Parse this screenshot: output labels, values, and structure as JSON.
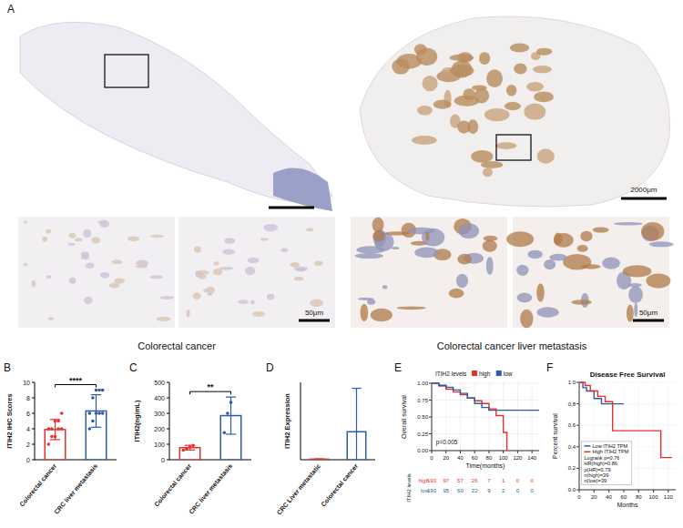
{
  "panel_a": {
    "letter": "A",
    "scale_overview": "2000μm",
    "scale_zoom": "50μm",
    "captions": [
      "Colorectal cancer",
      "Colorectal cancer liver metastasis"
    ]
  },
  "chart_data": [
    {
      "panel": "B",
      "type": "bar",
      "y_label": "ITIH2 IHC Scores",
      "categories": [
        "Colorectal cancer",
        "CRC liver metastasis"
      ],
      "values": [
        3.9,
        6.3
      ],
      "errors": [
        1.3,
        2.1
      ],
      "colors": [
        "#e8302a",
        "#2b5aa8"
      ],
      "points": [
        [
          2,
          3,
          3,
          4,
          4,
          4,
          4,
          5,
          5,
          6
        ],
        [
          4,
          5,
          6,
          6,
          6,
          6,
          8,
          9,
          9,
          9
        ]
      ],
      "significance": "****",
      "ylim": [
        0,
        10
      ],
      "yticks": [
        0,
        2,
        4,
        6,
        8,
        10
      ]
    },
    {
      "panel": "C",
      "type": "bar",
      "y_label": "ITIH2(ng/mL)",
      "categories": [
        "Colorectal cancer",
        "CRC liver metastasis"
      ],
      "values": [
        78,
        285
      ],
      "errors": [
        15,
        120
      ],
      "colors": [
        "#e8302a",
        "#2b5aa8"
      ],
      "points": [
        [
          62,
          72,
          82,
          92
        ],
        [
          175,
          300,
          370
        ]
      ],
      "significance": "**",
      "ylim": [
        0,
        500
      ],
      "yticks": [
        0,
        100,
        200,
        300,
        400,
        500
      ]
    },
    {
      "panel": "D",
      "type": "bar",
      "y_label": "ITIH2 Expression",
      "categories": [
        "CRC Liver metastatic",
        "Colorectal cancer"
      ],
      "values": [
        1,
        47
      ],
      "errors": [
        0.5,
        73
      ],
      "colors": [
        "#e8302a",
        "#2b5aa8"
      ],
      "ylim": [
        0,
        130
      ],
      "tick_labels": false
    },
    {
      "panel": "E",
      "type": "line",
      "line_style": "step",
      "y_label": "Overall survival",
      "x_label": "Time(months)",
      "legend_title": "ITIH2 levels",
      "legend": "top",
      "annotation": "p=0.005",
      "xlim": [
        0,
        150
      ],
      "xticks": [
        0,
        20,
        40,
        60,
        80,
        100,
        120,
        140
      ],
      "ylim": [
        0,
        1
      ],
      "yticks": [
        {
          "value": 0,
          "label": "0.00"
        },
        {
          "value": 0.25,
          "label": "0.25"
        },
        {
          "value": 0.5,
          "label": "0.50"
        },
        {
          "value": 0.75,
          "label": "0.75"
        },
        {
          "value": 1,
          "label": "1.00"
        }
      ],
      "series": [
        {
          "name": "high",
          "color": "#e8302a",
          "x": [
            0,
            10,
            20,
            30,
            40,
            50,
            60,
            70,
            80,
            90,
            100,
            105
          ],
          "values": [
            1,
            0.96,
            0.91,
            0.87,
            0.83,
            0.78,
            0.74,
            0.7,
            0.62,
            0.52,
            0.27,
            0
          ]
        },
        {
          "name": "low",
          "color": "#2b5aa8",
          "x": [
            0,
            10,
            20,
            30,
            40,
            50,
            60,
            70,
            80,
            150
          ],
          "values": [
            1,
            0.97,
            0.94,
            0.9,
            0.85,
            0.78,
            0.7,
            0.64,
            0.6,
            0.6
          ]
        }
      ],
      "risk_table": {
        "title": "ITIH2 levels",
        "x": [
          0,
          20,
          40,
          60,
          80,
          100,
          120,
          140
        ],
        "rows": [
          {
            "name": "high",
            "values": [
              190,
              97,
              57,
              26,
              7,
              1,
              0,
              0
            ]
          },
          {
            "name": "low",
            "values": [
              190,
              95,
              60,
              22,
              9,
              2,
              0,
              0
            ]
          }
        ]
      }
    },
    {
      "panel": "F",
      "type": "line",
      "line_style": "step",
      "title": "Disease Free Survival",
      "y_label": "Percent survival",
      "x_label": "Months",
      "legend": "lower left",
      "annotations": [
        "Logrank p=0.76",
        "HR(high)=0.86",
        "p(HR)=0.79",
        "n(high)=39",
        "n(low)=39"
      ],
      "xlim": [
        0,
        130
      ],
      "xticks": [
        0,
        20,
        40,
        60,
        80,
        100,
        120
      ],
      "ylim": [
        0,
        1
      ],
      "yticks": [
        {
          "value": 0,
          "label": "0.0"
        },
        {
          "value": 0.2,
          "label": "0.2"
        },
        {
          "value": 0.4,
          "label": "0.4"
        },
        {
          "value": 0.6,
          "label": "0.6"
        },
        {
          "value": 0.8,
          "label": "0.8"
        },
        {
          "value": 1,
          "label": "1.0"
        }
      ],
      "series": [
        {
          "name": "Low ITIH2 TPM",
          "color": "#2b5aa8",
          "x": [
            0,
            5,
            10,
            20,
            30,
            60
          ],
          "values": [
            1,
            0.95,
            0.92,
            0.85,
            0.8,
            0.8
          ]
        },
        {
          "name": "High ITIH2 TPM",
          "color": "#e8302a",
          "x": [
            0,
            8,
            15,
            25,
            35,
            45,
            110,
            125
          ],
          "values": [
            1,
            0.97,
            0.92,
            0.87,
            0.82,
            0.55,
            0.3,
            0.3
          ]
        }
      ]
    }
  ]
}
